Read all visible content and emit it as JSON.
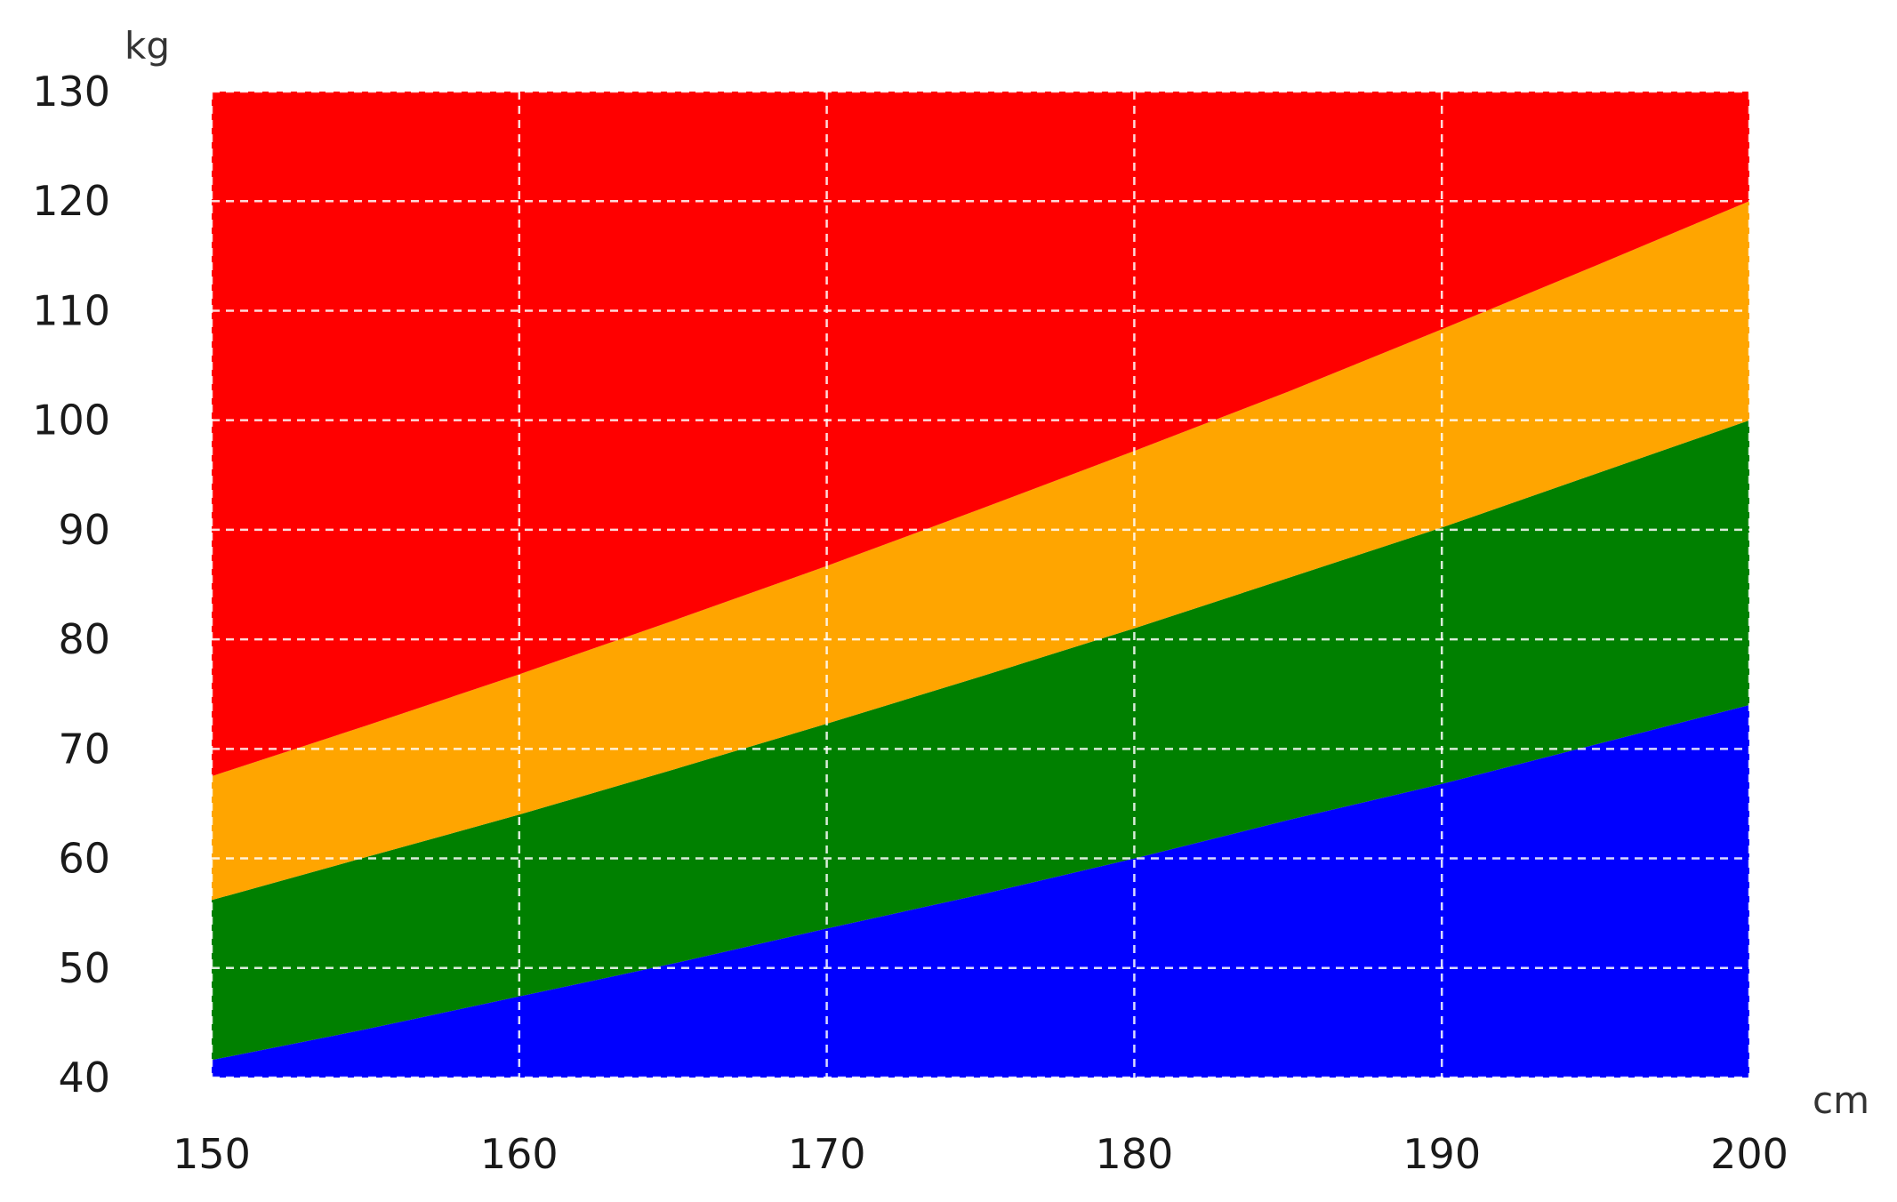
{
  "chart_data": {
    "type": "area",
    "title": "",
    "xlabel": "cm",
    "ylabel": "kg",
    "xlim": [
      150,
      200
    ],
    "ylim": [
      40,
      130
    ],
    "grid": true,
    "grid_style": "dashed",
    "x_ticks": [
      150,
      160,
      170,
      180,
      190,
      200
    ],
    "y_ticks": [
      40,
      50,
      60,
      70,
      80,
      90,
      100,
      110,
      120,
      130
    ],
    "x": [
      150,
      155,
      160,
      165,
      170,
      175,
      180,
      185,
      190,
      195,
      200
    ],
    "boundaries": [
      {
        "values": [
          41.6,
          44.4,
          47.4,
          50.4,
          53.6,
          56.7,
          60.0,
          63.5,
          66.8,
          70.4,
          74.0
        ]
      },
      {
        "values": [
          56.2,
          60.1,
          64.0,
          68.1,
          72.3,
          76.6,
          81.0,
          85.6,
          90.2,
          95.1,
          100.0
        ]
      },
      {
        "values": [
          67.5,
          72.1,
          76.8,
          81.7,
          86.7,
          91.9,
          97.2,
          102.6,
          108.3,
          114.1,
          120.0
        ]
      }
    ],
    "series": [
      {
        "color": "#0000ff",
        "lower": "ymin",
        "upper": 0
      },
      {
        "color": "#008000",
        "lower": 0,
        "upper": 1
      },
      {
        "color": "#ffa500",
        "lower": 1,
        "upper": 2
      },
      {
        "color": "#ff0000",
        "lower": 2,
        "upper": "ymax"
      }
    ]
  }
}
